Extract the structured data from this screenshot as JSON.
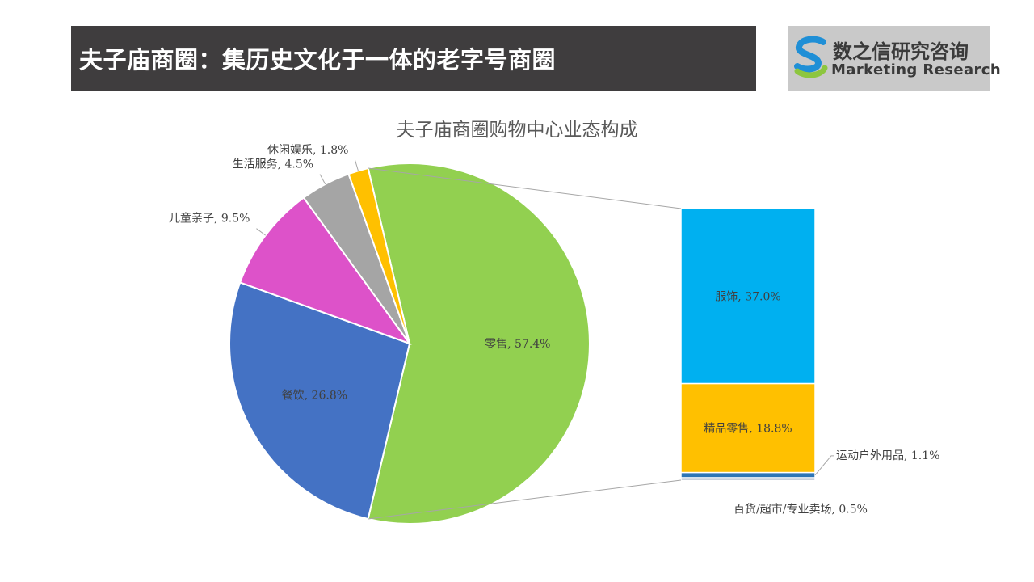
{
  "header": {
    "title": "夫子庙商圈：集历史文化于一体的老字号商圈"
  },
  "logo": {
    "name_cn": "数之信研究咨询",
    "name_en": "Marketing Research"
  },
  "chart_data": {
    "type": "pie",
    "subtype": "bar-of-pie",
    "title": "夫子庙商圈购物中心业态构成",
    "pie": {
      "slices": [
        {
          "name": "零售",
          "value": 57.4,
          "label": "零售, 57.4%",
          "color": "#92d050"
        },
        {
          "name": "餐饮",
          "value": 26.8,
          "label": "餐饮, 26.8%",
          "color": "#4472c4"
        },
        {
          "name": "儿童亲子",
          "value": 9.5,
          "label": "儿童亲子, 9.5%",
          "color": "#dd52c9"
        },
        {
          "name": "生活服务",
          "value": 4.5,
          "label": "生活服务, 4.5%",
          "color": "#a5a5a5"
        },
        {
          "name": "休闲娱乐",
          "value": 1.8,
          "label": "休闲娱乐, 1.8%",
          "color": "#ffc000"
        }
      ]
    },
    "bar": {
      "of": "零售",
      "segments": [
        {
          "name": "服饰",
          "value": 37.0,
          "label": "服饰, 37.0%",
          "color": "#00b0f0"
        },
        {
          "name": "精品零售",
          "value": 18.8,
          "label": "精品零售, 18.8%",
          "color": "#ffc000"
        },
        {
          "name": "运动户外用品",
          "value": 1.1,
          "label": "运动户外用品, 1.1%",
          "color": "#2e75b6"
        },
        {
          "name": "百货/超市/专业卖场",
          "value": 0.5,
          "label": "百货/超市/专业卖场, 0.5%",
          "color": "#264478"
        }
      ]
    }
  }
}
